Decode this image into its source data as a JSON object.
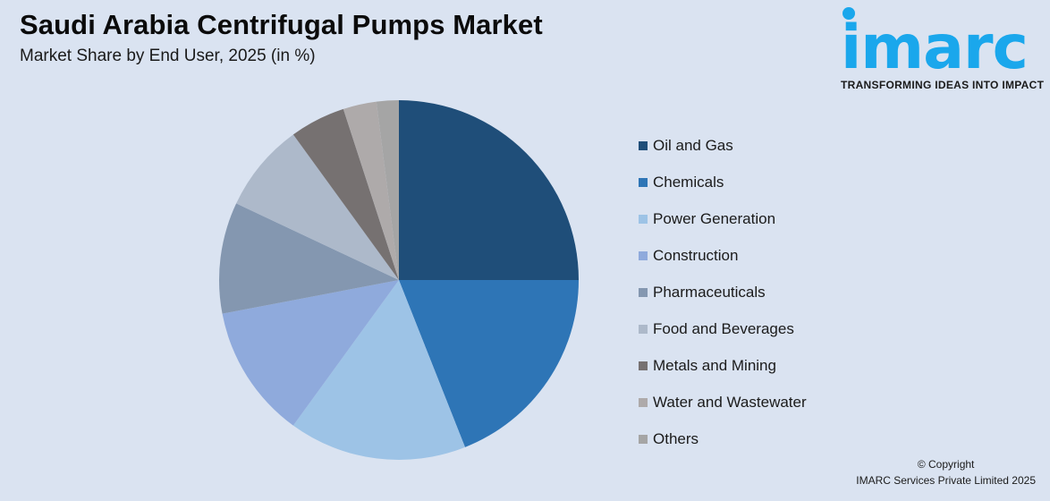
{
  "header": {
    "title": "Saudi Arabia Centrifugal Pumps Market",
    "subtitle": "Market Share by End User, 2025 (in %)"
  },
  "logo": {
    "wordmark": "imarc",
    "tagline": "TRANSFORMING IDEAS INTO IMPACT",
    "color": "#1aa7ec"
  },
  "legend": {
    "items": [
      {
        "label": "Oil and Gas",
        "color": "#1f4e79"
      },
      {
        "label": "Chemicals",
        "color": "#2e75b6"
      },
      {
        "label": "Power Generation",
        "color": "#9dc3e6"
      },
      {
        "label": "Construction",
        "color": "#8faadc"
      },
      {
        "label": "Pharmaceuticals",
        "color": "#8497b0"
      },
      {
        "label": "Food and Beverages",
        "color": "#adb9ca"
      },
      {
        "label": "Metals and Mining",
        "color": "#767171"
      },
      {
        "label": "Water and Wastewater",
        "color": "#aeaaaa"
      },
      {
        "label": "Others",
        "color": "#a5a5a5"
      }
    ]
  },
  "footer": {
    "copyright_line1": "© Copyright",
    "copyright_line2": "IMARC Services Private Limited 2025"
  },
  "chart_data": {
    "type": "pie",
    "title": "Saudi Arabia Centrifugal Pumps Market",
    "subtitle": "Market Share by End User, 2025 (in %)",
    "categories": [
      "Oil and Gas",
      "Chemicals",
      "Power Generation",
      "Construction",
      "Pharmaceuticals",
      "Food and Beverages",
      "Metals and Mining",
      "Water and Wastewater",
      "Others"
    ],
    "values": [
      25,
      19,
      16,
      12,
      10,
      8,
      5,
      3,
      2
    ],
    "colors": [
      "#1f4e79",
      "#2e75b6",
      "#9dc3e6",
      "#8faadc",
      "#8497b0",
      "#adb9ca",
      "#767171",
      "#aeaaaa",
      "#a5a5a5"
    ],
    "start_angle": "12 o'clock, clockwise",
    "legend_position": "right",
    "data_labels": false
  }
}
